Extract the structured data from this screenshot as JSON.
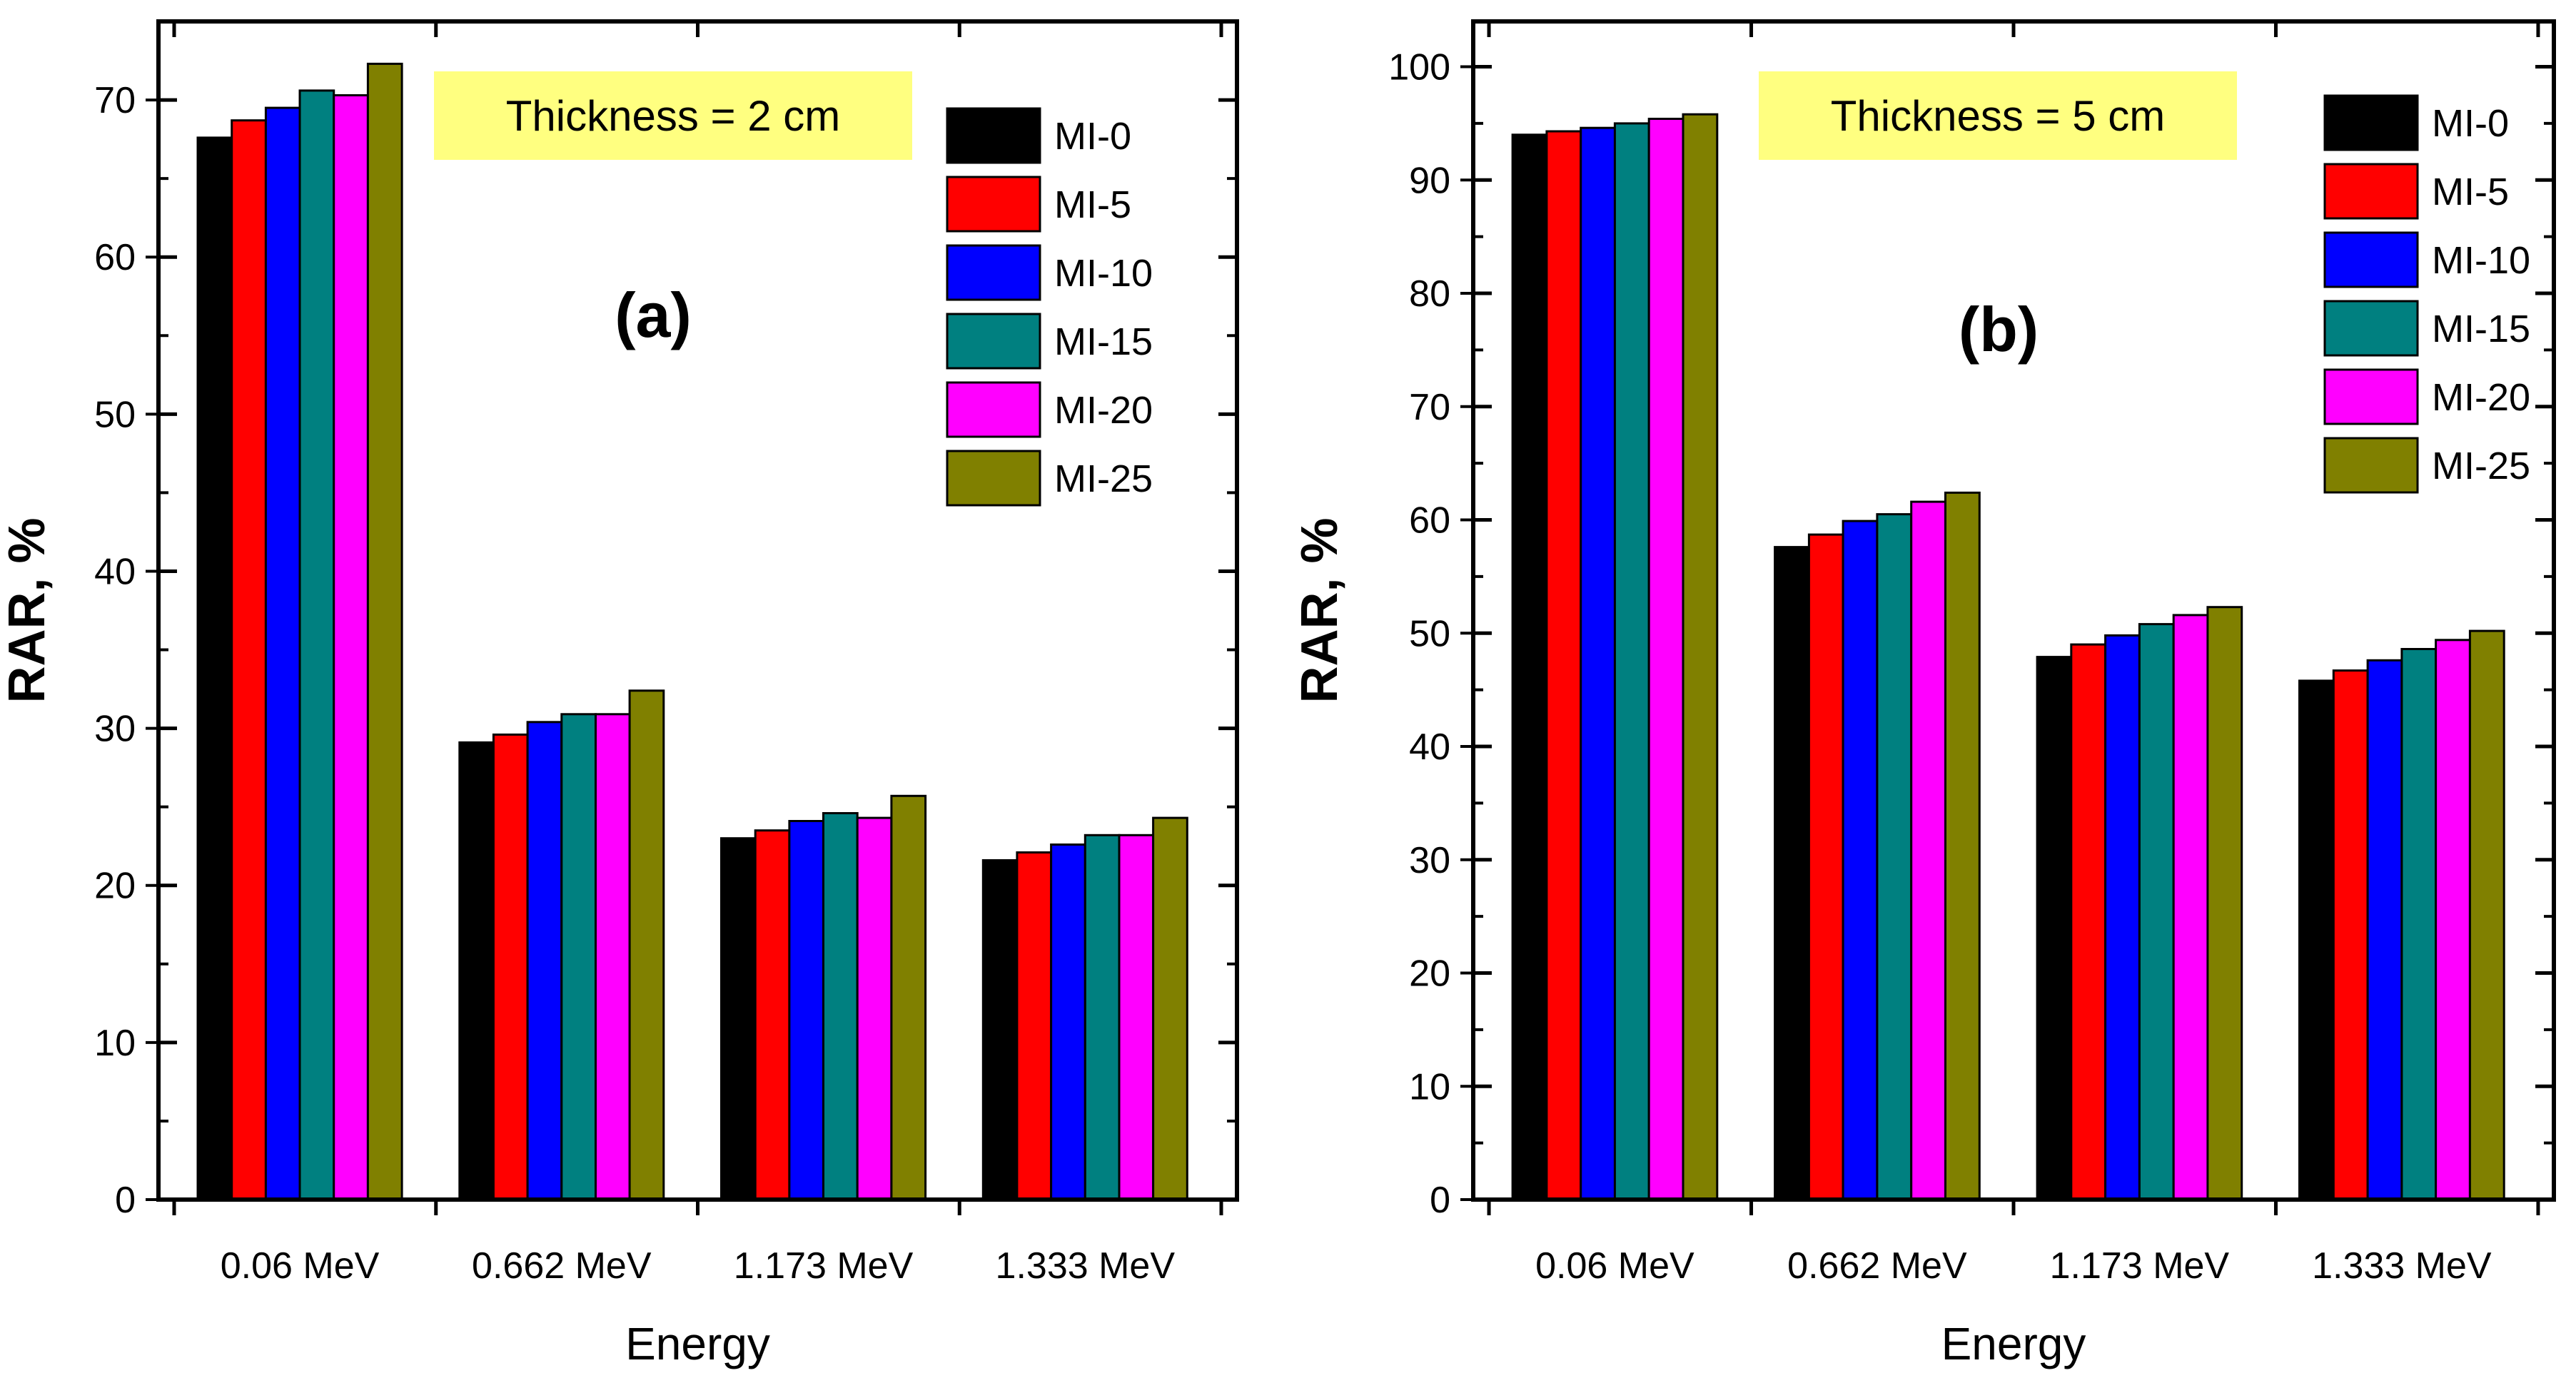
{
  "chart_data": [
    {
      "type": "bar",
      "panel_label": "(a)",
      "annotation": "Thickness = 2 cm",
      "title": "",
      "xlabel": "Energy",
      "ylabel": "RAR, %",
      "categories": [
        "0.06 MeV",
        "0.662 MeV",
        "1.173 MeV",
        "1.333 MeV"
      ],
      "ylim": [
        0,
        75
      ],
      "yticks": [
        0,
        10,
        20,
        30,
        40,
        50,
        60,
        70
      ],
      "legend_position": "top-right",
      "series": [
        {
          "name": "MI-0",
          "color": "#000000",
          "values": [
            67.6,
            29.1,
            23.0,
            21.6
          ]
        },
        {
          "name": "MI-5",
          "color": "#ff0000",
          "values": [
            68.7,
            29.6,
            23.5,
            22.1
          ]
        },
        {
          "name": "MI-10",
          "color": "#0000ff",
          "values": [
            69.5,
            30.4,
            24.1,
            22.6
          ]
        },
        {
          "name": "MI-15",
          "color": "#008080",
          "values": [
            70.6,
            30.9,
            24.6,
            23.2
          ]
        },
        {
          "name": "MI-20",
          "color": "#ff00ff",
          "values": [
            70.3,
            30.9,
            24.3,
            23.2
          ]
        },
        {
          "name": "MI-25",
          "color": "#808000",
          "values": [
            72.3,
            32.4,
            25.7,
            24.3
          ]
        }
      ]
    },
    {
      "type": "bar",
      "panel_label": "(b)",
      "annotation": "Thickness = 5 cm",
      "title": "",
      "xlabel": "Energy",
      "ylabel": "RAR, %",
      "categories": [
        "0.06 MeV",
        "0.662 MeV",
        "1.173 MeV",
        "1.333 MeV"
      ],
      "ylim": [
        0,
        104
      ],
      "yticks": [
        0,
        10,
        20,
        30,
        40,
        50,
        60,
        70,
        80,
        90,
        100
      ],
      "legend_position": "top-right",
      "series": [
        {
          "name": "MI-0",
          "color": "#000000",
          "values": [
            94.0,
            57.6,
            47.9,
            45.8
          ]
        },
        {
          "name": "MI-5",
          "color": "#ff0000",
          "values": [
            94.3,
            58.7,
            49.0,
            46.7
          ]
        },
        {
          "name": "MI-10",
          "color": "#0000ff",
          "values": [
            94.6,
            59.9,
            49.8,
            47.6
          ]
        },
        {
          "name": "MI-15",
          "color": "#008080",
          "values": [
            95.0,
            60.5,
            50.8,
            48.6
          ]
        },
        {
          "name": "MI-20",
          "color": "#ff00ff",
          "values": [
            95.4,
            61.6,
            51.6,
            49.4
          ]
        },
        {
          "name": "MI-25",
          "color": "#808000",
          "values": [
            95.8,
            62.4,
            52.3,
            50.2
          ]
        }
      ]
    }
  ],
  "colors": {
    "annotation_box": "#ffff80",
    "axis": "#000000",
    "background": "#ffffff"
  }
}
